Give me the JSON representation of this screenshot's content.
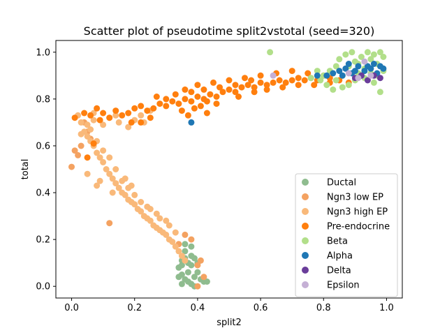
{
  "chart_data": {
    "type": "scatter",
    "title": "Scatter plot of pseudotime split2vstotal (seed=320)",
    "xlabel": "split2",
    "ylabel": "total",
    "xlim": [
      -0.05,
      1.05
    ],
    "ylim": [
      -0.05,
      1.05
    ],
    "xticks": [
      "0.0",
      "0.2",
      "0.4",
      "0.6",
      "0.8",
      "1.0"
    ],
    "yticks": [
      "0.0",
      "0.2",
      "0.4",
      "0.6",
      "0.8",
      "1.0"
    ],
    "grid": false,
    "legend_position": "lower-right",
    "series": [
      {
        "name": "Ductal",
        "color": "#8fbc8f",
        "points": [
          [
            0.34,
            0.08
          ],
          [
            0.35,
            0.05
          ],
          [
            0.36,
            0.12
          ],
          [
            0.37,
            0.02
          ],
          [
            0.38,
            0.09
          ],
          [
            0.39,
            0.04
          ],
          [
            0.36,
            0.15
          ],
          [
            0.38,
            0.17
          ],
          [
            0.35,
            0.01
          ],
          [
            0.4,
            0.06
          ],
          [
            0.41,
            0.03
          ],
          [
            0.37,
            0.1
          ],
          [
            0.36,
            0.03
          ],
          [
            0.39,
            0.12
          ],
          [
            0.42,
            0.02
          ],
          [
            0.35,
            0.09
          ],
          [
            0.38,
            0.01
          ],
          [
            0.34,
            0.04
          ],
          [
            0.4,
            0.1
          ],
          [
            0.37,
            0.06
          ],
          [
            0.36,
            0.18
          ],
          [
            0.43,
            0.02
          ],
          [
            0.39,
            0.0
          ],
          [
            0.38,
            0.13
          ],
          [
            0.35,
            0.11
          ]
        ]
      },
      {
        "name": "Ngn3 low EP",
        "color": "#f4a261",
        "points": [
          [
            0.02,
            0.56
          ],
          [
            0.03,
            0.6
          ],
          [
            0.0,
            0.51
          ],
          [
            0.05,
            0.66
          ],
          [
            0.04,
            0.7
          ],
          [
            0.12,
            0.27
          ],
          [
            0.41,
            0.11
          ],
          [
            0.4,
            0.0
          ],
          [
            0.42,
            0.04
          ],
          [
            0.38,
            0.2
          ],
          [
            0.36,
            0.22
          ],
          [
            0.06,
            0.63
          ],
          [
            0.01,
            0.58
          ],
          [
            0.4,
            0.09
          ],
          [
            0.34,
            0.18
          ]
        ]
      },
      {
        "name": "Ngn3 high EP",
        "color": "#f9b97a",
        "points": [
          [
            0.02,
            0.73
          ],
          [
            0.03,
            0.7
          ],
          [
            0.04,
            0.66
          ],
          [
            0.05,
            0.64
          ],
          [
            0.06,
            0.62
          ],
          [
            0.07,
            0.6
          ],
          [
            0.08,
            0.57
          ],
          [
            0.09,
            0.55
          ],
          [
            0.1,
            0.53
          ],
          [
            0.11,
            0.5
          ],
          [
            0.12,
            0.48
          ],
          [
            0.13,
            0.46
          ],
          [
            0.14,
            0.44
          ],
          [
            0.15,
            0.42
          ],
          [
            0.16,
            0.4
          ],
          [
            0.17,
            0.39
          ],
          [
            0.18,
            0.37
          ],
          [
            0.19,
            0.36
          ],
          [
            0.2,
            0.35
          ],
          [
            0.21,
            0.33
          ],
          [
            0.22,
            0.32
          ],
          [
            0.23,
            0.3
          ],
          [
            0.24,
            0.29
          ],
          [
            0.25,
            0.28
          ],
          [
            0.26,
            0.26
          ],
          [
            0.27,
            0.25
          ],
          [
            0.28,
            0.24
          ],
          [
            0.29,
            0.23
          ],
          [
            0.3,
            0.22
          ],
          [
            0.31,
            0.2
          ],
          [
            0.32,
            0.19
          ],
          [
            0.33,
            0.17
          ],
          [
            0.34,
            0.15
          ],
          [
            0.35,
            0.13
          ],
          [
            0.36,
            0.11
          ],
          [
            0.06,
            0.67
          ],
          [
            0.08,
            0.62
          ],
          [
            0.1,
            0.58
          ],
          [
            0.12,
            0.55
          ],
          [
            0.14,
            0.5
          ],
          [
            0.16,
            0.45
          ],
          [
            0.18,
            0.42
          ],
          [
            0.2,
            0.39
          ],
          [
            0.22,
            0.36
          ],
          [
            0.25,
            0.33
          ],
          [
            0.28,
            0.29
          ],
          [
            0.31,
            0.26
          ],
          [
            0.05,
            0.69
          ],
          [
            0.07,
            0.71
          ],
          [
            0.03,
            0.65
          ],
          [
            0.09,
            0.45
          ],
          [
            0.08,
            0.43
          ],
          [
            0.05,
            0.48
          ],
          [
            0.13,
            0.4
          ],
          [
            0.17,
            0.46
          ],
          [
            0.19,
            0.43
          ],
          [
            0.24,
            0.34
          ],
          [
            0.27,
            0.31
          ],
          [
            0.3,
            0.28
          ],
          [
            0.33,
            0.23
          ],
          [
            0.12,
            0.72
          ],
          [
            0.15,
            0.7
          ],
          [
            0.18,
            0.68
          ],
          [
            0.2,
            0.71
          ],
          [
            0.22,
            0.73
          ],
          [
            0.25,
            0.75
          ],
          [
            0.1,
            0.69
          ],
          [
            0.07,
            0.74
          ],
          [
            0.14,
            0.73
          ],
          [
            0.23,
            0.7
          ]
        ]
      },
      {
        "name": "Pre-endocrine",
        "color": "#ff7f0e",
        "points": [
          [
            0.01,
            0.72
          ],
          [
            0.04,
            0.74
          ],
          [
            0.06,
            0.73
          ],
          [
            0.09,
            0.71
          ],
          [
            0.1,
            0.74
          ],
          [
            0.12,
            0.72
          ],
          [
            0.14,
            0.75
          ],
          [
            0.16,
            0.73
          ],
          [
            0.18,
            0.74
          ],
          [
            0.2,
            0.76
          ],
          [
            0.22,
            0.77
          ],
          [
            0.24,
            0.75
          ],
          [
            0.26,
            0.76
          ],
          [
            0.28,
            0.78
          ],
          [
            0.3,
            0.77
          ],
          [
            0.32,
            0.79
          ],
          [
            0.34,
            0.78
          ],
          [
            0.36,
            0.8
          ],
          [
            0.38,
            0.79
          ],
          [
            0.4,
            0.81
          ],
          [
            0.42,
            0.8
          ],
          [
            0.44,
            0.82
          ],
          [
            0.46,
            0.81
          ],
          [
            0.48,
            0.83
          ],
          [
            0.5,
            0.84
          ],
          [
            0.52,
            0.83
          ],
          [
            0.54,
            0.85
          ],
          [
            0.56,
            0.86
          ],
          [
            0.58,
            0.85
          ],
          [
            0.6,
            0.87
          ],
          [
            0.62,
            0.86
          ],
          [
            0.64,
            0.87
          ],
          [
            0.66,
            0.88
          ],
          [
            0.68,
            0.87
          ],
          [
            0.7,
            0.88
          ],
          [
            0.72,
            0.89
          ],
          [
            0.74,
            0.88
          ],
          [
            0.76,
            0.89
          ],
          [
            0.78,
            0.88
          ],
          [
            0.8,
            0.9
          ],
          [
            0.82,
            0.89
          ],
          [
            0.35,
            0.75
          ],
          [
            0.37,
            0.73
          ],
          [
            0.39,
            0.76
          ],
          [
            0.41,
            0.77
          ],
          [
            0.43,
            0.74
          ],
          [
            0.33,
            0.82
          ],
          [
            0.36,
            0.84
          ],
          [
            0.4,
            0.86
          ],
          [
            0.45,
            0.87
          ],
          [
            0.5,
            0.88
          ],
          [
            0.55,
            0.89
          ],
          [
            0.6,
            0.9
          ],
          [
            0.65,
            0.91
          ],
          [
            0.7,
            0.92
          ],
          [
            0.75,
            0.91
          ],
          [
            0.3,
            0.8
          ],
          [
            0.27,
            0.81
          ],
          [
            0.25,
            0.72
          ],
          [
            0.43,
            0.79
          ],
          [
            0.47,
            0.85
          ],
          [
            0.52,
            0.86
          ],
          [
            0.57,
            0.88
          ],
          [
            0.62,
            0.84
          ],
          [
            0.67,
            0.85
          ],
          [
            0.72,
            0.86
          ],
          [
            0.77,
            0.86
          ],
          [
            0.82,
            0.87
          ],
          [
            0.85,
            0.88
          ],
          [
            0.88,
            0.87
          ],
          [
            0.19,
            0.7
          ],
          [
            0.05,
            0.55
          ],
          [
            0.07,
            0.61
          ],
          [
            0.08,
            0.76
          ],
          [
            0.22,
            0.7
          ],
          [
            0.38,
            0.83
          ],
          [
            0.42,
            0.84
          ],
          [
            0.46,
            0.78
          ],
          [
            0.53,
            0.81
          ],
          [
            0.58,
            0.83
          ]
        ]
      },
      {
        "name": "Beta",
        "color": "#b2df8a",
        "points": [
          [
            0.63,
            1.0
          ],
          [
            0.8,
            0.9
          ],
          [
            0.82,
            0.92
          ],
          [
            0.84,
            0.88
          ],
          [
            0.86,
            0.9
          ],
          [
            0.88,
            0.94
          ],
          [
            0.9,
            0.96
          ],
          [
            0.92,
            0.98
          ],
          [
            0.94,
            1.0
          ],
          [
            0.96,
            0.99
          ],
          [
            0.98,
            1.0
          ],
          [
            0.85,
            0.97
          ],
          [
            0.87,
            0.99
          ],
          [
            0.89,
            1.0
          ],
          [
            0.91,
            0.95
          ],
          [
            0.93,
            0.93
          ],
          [
            0.95,
            0.91
          ],
          [
            0.97,
            0.9
          ],
          [
            0.99,
            0.92
          ],
          [
            0.96,
            0.87
          ],
          [
            0.98,
            0.83
          ],
          [
            0.93,
            0.89
          ],
          [
            0.81,
            0.86
          ],
          [
            0.83,
            0.84
          ],
          [
            0.88,
            0.86
          ],
          [
            0.76,
            0.89
          ],
          [
            0.78,
            0.92
          ],
          [
            0.79,
            0.88
          ],
          [
            0.86,
            0.85
          ],
          [
            0.9,
            0.88
          ],
          [
            0.95,
            0.97
          ],
          [
            0.97,
            0.95
          ],
          [
            0.84,
            0.94
          ],
          [
            0.91,
            0.91
          ],
          [
            0.99,
            0.98
          ]
        ]
      },
      {
        "name": "Alpha",
        "color": "#1f77b4",
        "points": [
          [
            0.85,
            0.92
          ],
          [
            0.87,
            0.93
          ],
          [
            0.89,
            0.91
          ],
          [
            0.91,
            0.94
          ],
          [
            0.93,
            0.92
          ],
          [
            0.95,
            0.93
          ],
          [
            0.97,
            0.91
          ],
          [
            0.99,
            0.93
          ],
          [
            0.88,
            0.95
          ],
          [
            0.9,
            0.92
          ],
          [
            0.92,
            0.9
          ],
          [
            0.94,
            0.94
          ],
          [
            0.96,
            0.95
          ],
          [
            0.86,
            0.9
          ],
          [
            0.98,
            0.94
          ],
          [
            0.83,
            0.91
          ],
          [
            0.81,
            0.9
          ],
          [
            0.78,
            0.9
          ],
          [
            0.38,
            0.7
          ]
        ]
      },
      {
        "name": "Delta",
        "color": "#6a3d9a",
        "points": [
          [
            0.9,
            0.89
          ],
          [
            0.92,
            0.9
          ],
          [
            0.94,
            0.88
          ],
          [
            0.96,
            0.9
          ],
          [
            0.98,
            0.89
          ]
        ]
      },
      {
        "name": "Epsilon",
        "color": "#c5b0d5",
        "points": [
          [
            0.64,
            0.9
          ],
          [
            0.88,
            0.91
          ],
          [
            0.91,
            0.89
          ],
          [
            0.95,
            0.9
          ],
          [
            0.93,
            0.96
          ]
        ]
      }
    ]
  }
}
